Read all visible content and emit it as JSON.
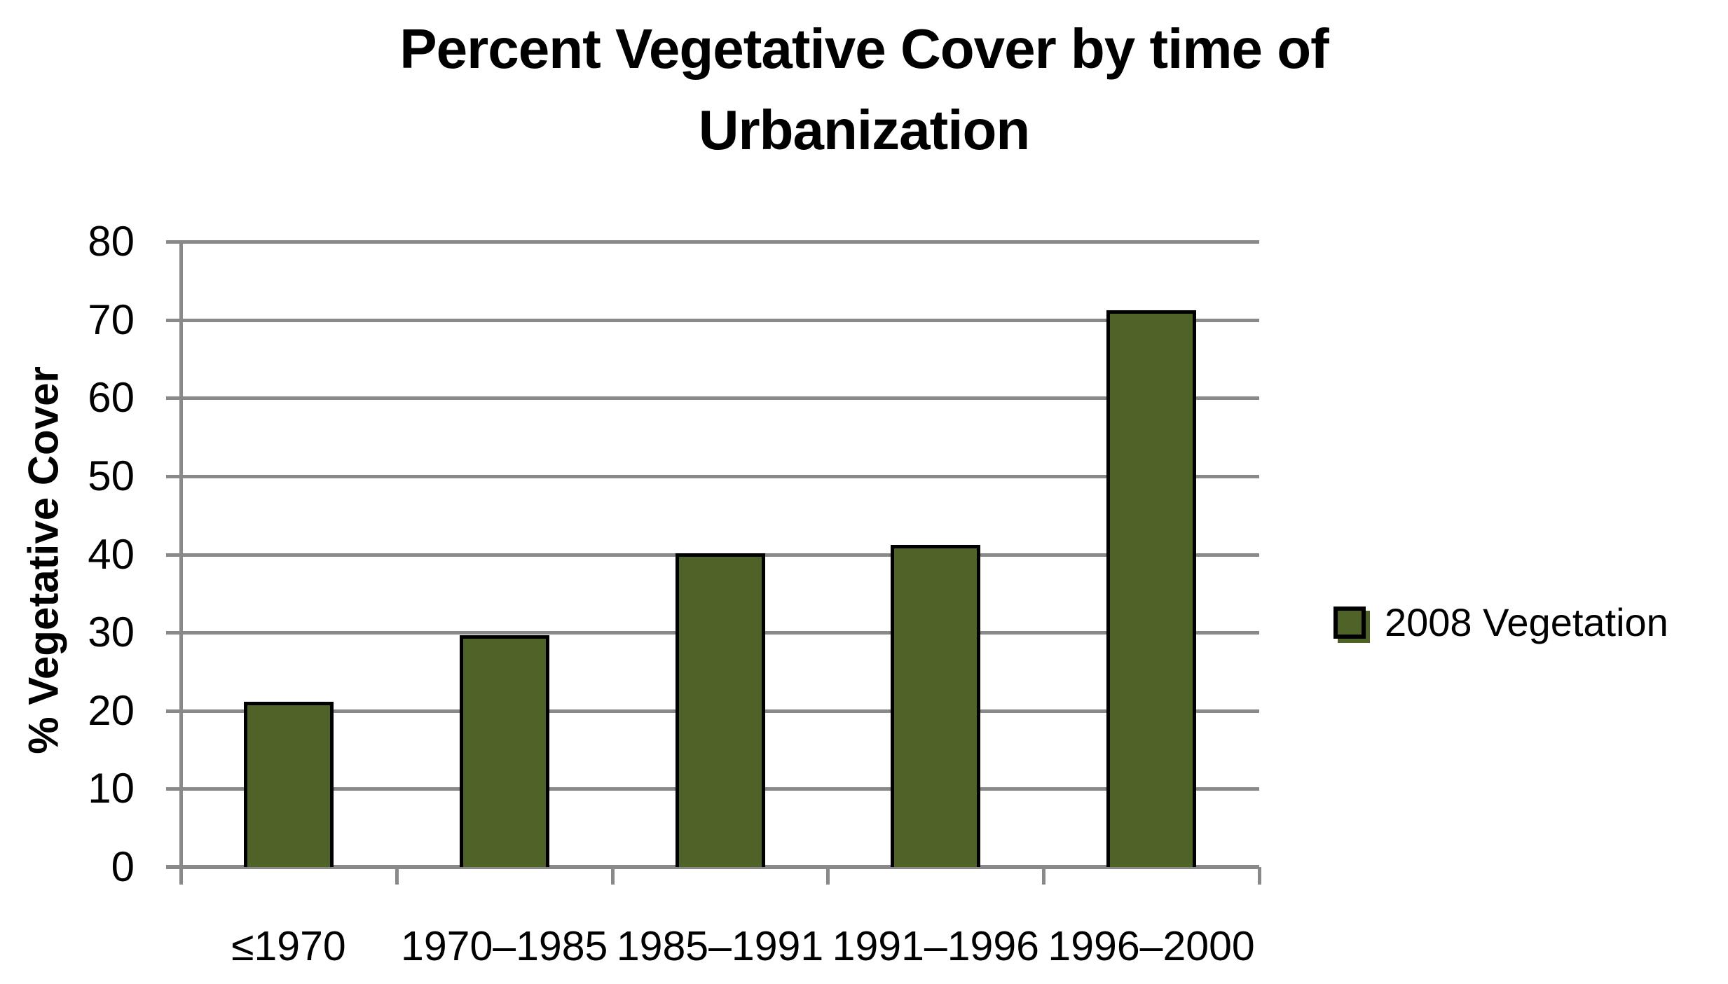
{
  "chart_data": {
    "type": "bar",
    "title": "Percent Vegetative Cover by time of Urbanization",
    "title_lines": [
      "Percent Vegetative Cover by time of",
      "Urbanization"
    ],
    "xlabel": "",
    "ylabel": "% Vegetative Cover",
    "categories": [
      "≤1970",
      "1970–1985",
      "1985–1991",
      "1991–1996",
      "1996–2000"
    ],
    "series": [
      {
        "name": "2008 Vegetation",
        "values": [
          21,
          29.5,
          40,
          41,
          71
        ]
      }
    ],
    "ylim": [
      0,
      80
    ],
    "yticks": [
      0,
      10,
      20,
      30,
      40,
      50,
      60,
      70,
      80
    ],
    "grid": true,
    "legend_position": "right",
    "colors": {
      "bar_fill": "#4F6228",
      "bar_border": "#000000",
      "gridline": "#898989",
      "axis": "#898989",
      "text": "#000000",
      "background": "#FFFFFF"
    }
  }
}
